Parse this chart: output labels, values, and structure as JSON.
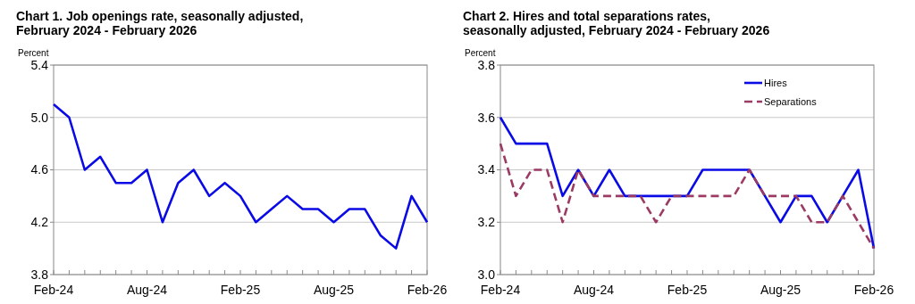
{
  "chart_data": [
    {
      "type": "line",
      "title": "Chart 1. Job openings rate, seasonally adjusted, February 2024 - February 2026",
      "ylabel": "Percent",
      "categories": [
        "Feb-24",
        null,
        null,
        null,
        null,
        null,
        "Aug-24",
        null,
        null,
        null,
        null,
        null,
        "Feb-25",
        null,
        null,
        null,
        null,
        null,
        "Aug-25",
        null,
        null,
        null,
        null,
        null,
        "Feb-26"
      ],
      "series": [
        {
          "color": "#0a0ae6",
          "values": [
            5.1,
            5.0,
            4.6,
            4.7,
            4.5,
            4.5,
            4.6,
            4.2,
            4.5,
            4.6,
            4.4,
            4.5,
            4.4,
            4.2,
            4.3,
            4.4,
            4.3,
            4.3,
            4.2,
            4.3,
            4.3,
            4.1,
            4.0,
            4.4,
            4.2
          ]
        }
      ],
      "ylim": [
        3.8,
        5.4
      ],
      "yticks": [
        {
          "value": 3.8,
          "label": "3.8"
        },
        {
          "value": 4.2,
          "label": "4.2"
        },
        {
          "value": 4.6,
          "label": "4.6"
        },
        {
          "value": 5.0,
          "label": "5.0"
        },
        {
          "value": 5.4,
          "label": "5.4"
        }
      ],
      "grid": "y",
      "legend": false
    },
    {
      "type": "line",
      "title": "Chart 2. Hires and total separations rates, seasonally adjusted, February 2024 - February 2026",
      "ylabel": "Percent",
      "categories": [
        "Feb-24",
        null,
        null,
        null,
        null,
        null,
        "Aug-24",
        null,
        null,
        null,
        null,
        null,
        "Feb-25",
        null,
        null,
        null,
        null,
        null,
        "Aug-25",
        null,
        null,
        null,
        null,
        null,
        "Feb-26"
      ],
      "series": [
        {
          "name": "Hires",
          "color": "#0a0ae6",
          "line_style": "solid",
          "values": [
            3.6,
            3.5,
            3.5,
            3.5,
            3.3,
            3.4,
            3.3,
            3.4,
            3.3,
            3.3,
            3.3,
            3.3,
            3.3,
            3.4,
            3.4,
            3.4,
            3.4,
            3.3,
            3.2,
            3.3,
            3.3,
            3.2,
            3.3,
            3.4,
            3.1
          ]
        },
        {
          "name": "Separations",
          "color": "#9b3a63",
          "line_style": "dashed",
          "values": [
            3.5,
            3.3,
            3.4,
            3.4,
            3.2,
            3.4,
            3.3,
            3.3,
            3.3,
            3.3,
            3.2,
            3.3,
            3.3,
            3.3,
            3.3,
            3.3,
            3.4,
            3.3,
            3.3,
            3.3,
            3.2,
            3.2,
            3.3,
            3.2,
            3.1
          ]
        }
      ],
      "ylim": [
        3.0,
        3.8
      ],
      "yticks": [
        {
          "value": 3.0,
          "label": "3.0"
        },
        {
          "value": 3.2,
          "label": "3.2"
        },
        {
          "value": 3.4,
          "label": "3.4"
        },
        {
          "value": 3.6,
          "label": "3.6"
        },
        {
          "value": 3.8,
          "label": "3.8"
        }
      ],
      "grid": "y",
      "legend": "top right"
    }
  ]
}
